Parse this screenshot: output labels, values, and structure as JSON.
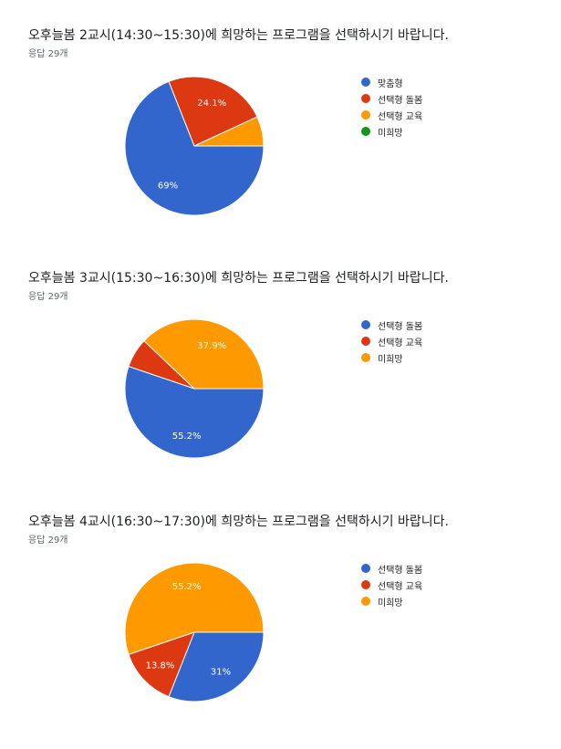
{
  "chart_data": [
    {
      "type": "pie",
      "title": "오후늘봄 2교시(14:30~15:30)에 희망하는 프로그램을 선택하시기 바랍니다.",
      "subtitle": "응답 29개",
      "series": [
        {
          "name": "맞춤형",
          "value": 69,
          "label": "69%",
          "color": "#3366cc"
        },
        {
          "name": "선택형 돌봄",
          "value": 24.1,
          "label": "24.1%",
          "color": "#dc3912"
        },
        {
          "name": "선택형 교육",
          "value": 6.9,
          "label": "",
          "color": "#ff9900"
        },
        {
          "name": "미희망",
          "value": 0,
          "label": "",
          "color": "#109618"
        }
      ]
    },
    {
      "type": "pie",
      "title": "오후늘봄 3교시(15:30~16:30)에 희망하는 프로그램을 선택하시기 바랍니다.",
      "subtitle": "응답 29개",
      "series": [
        {
          "name": "선택형 돌봄",
          "value": 55.2,
          "label": "55.2%",
          "color": "#3366cc"
        },
        {
          "name": "선택형 교육",
          "value": 6.9,
          "label": "",
          "color": "#dc3912"
        },
        {
          "name": "미희망",
          "value": 37.9,
          "label": "37.9%",
          "color": "#ff9900"
        }
      ]
    },
    {
      "type": "pie",
      "title": "오후늘봄 4교시(16:30~17:30)에 희망하는 프로그램을 선택하시기 바랍니다.",
      "subtitle": "응답 29개",
      "series": [
        {
          "name": "선택형 돌봄",
          "value": 31,
          "label": "31%",
          "color": "#3366cc"
        },
        {
          "name": "선택형 교육",
          "value": 13.8,
          "label": "13.8%",
          "color": "#dc3912"
        },
        {
          "name": "미희망",
          "value": 55.2,
          "label": "55.2%",
          "color": "#ff9900"
        }
      ]
    }
  ]
}
